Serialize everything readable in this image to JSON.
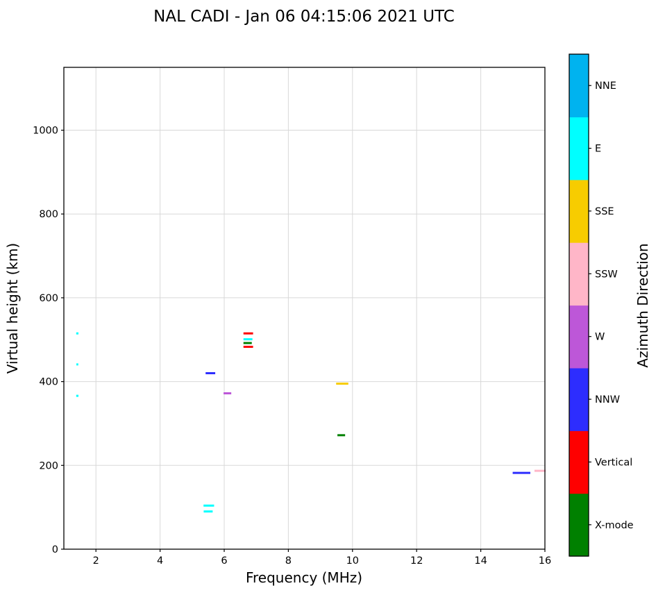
{
  "chart_data": {
    "type": "scatter",
    "title": "NAL CADI - Jan 06 04:15:06 2021 UTC",
    "xlabel": "Frequency (MHz)",
    "ylabel": "Virtual height (km)",
    "xlim": [
      1,
      16
    ],
    "ylim": [
      0,
      1150
    ],
    "x_ticks": [
      2,
      4,
      6,
      8,
      10,
      12,
      14,
      16
    ],
    "y_ticks": [
      0,
      200,
      400,
      600,
      800,
      1000
    ],
    "grid": true,
    "marker": "horizontal-dash",
    "colorbar": {
      "label": "Azimuth Direction",
      "categories_bottom_to_top": [
        {
          "label": "X-mode",
          "color": "#008000"
        },
        {
          "label": "Vertical",
          "color": "#fe0000"
        },
        {
          "label": "NNW",
          "color": "#2d2dfe"
        },
        {
          "label": "W",
          "color": "#bd57d8"
        },
        {
          "label": "SSW",
          "color": "#ffb6c8"
        },
        {
          "label": "SSE",
          "color": "#f7cc00"
        },
        {
          "label": "E",
          "color": "#00ffff"
        },
        {
          "label": "NNE",
          "color": "#00b3ef"
        }
      ]
    },
    "points": [
      {
        "freq_mhz": 1.42,
        "height_km": 515,
        "azimuth": "E",
        "width_mhz": 0.07
      },
      {
        "freq_mhz": 1.42,
        "height_km": 441,
        "azimuth": "E",
        "width_mhz": 0.06
      },
      {
        "freq_mhz": 1.42,
        "height_km": 366,
        "azimuth": "E",
        "width_mhz": 0.07
      },
      {
        "freq_mhz": 5.57,
        "height_km": 420,
        "azimuth": "NNW",
        "width_mhz": 0.3
      },
      {
        "freq_mhz": 5.52,
        "height_km": 104,
        "azimuth": "E",
        "width_mhz": 0.33
      },
      {
        "freq_mhz": 5.5,
        "height_km": 90,
        "azimuth": "E",
        "width_mhz": 0.28
      },
      {
        "freq_mhz": 6.1,
        "height_km": 372,
        "azimuth": "W",
        "width_mhz": 0.24
      },
      {
        "freq_mhz": 6.75,
        "height_km": 515,
        "azimuth": "Vertical",
        "width_mhz": 0.3
      },
      {
        "freq_mhz": 6.74,
        "height_km": 501,
        "azimuth": "E",
        "width_mhz": 0.28
      },
      {
        "freq_mhz": 6.73,
        "height_km": 492,
        "azimuth": "X-mode",
        "width_mhz": 0.26
      },
      {
        "freq_mhz": 6.75,
        "height_km": 483,
        "azimuth": "Vertical",
        "width_mhz": 0.3
      },
      {
        "freq_mhz": 9.68,
        "height_km": 395,
        "azimuth": "SSE",
        "width_mhz": 0.38
      },
      {
        "freq_mhz": 9.65,
        "height_km": 272,
        "azimuth": "X-mode",
        "width_mhz": 0.24
      },
      {
        "freq_mhz": 15.27,
        "height_km": 182,
        "azimuth": "NNW",
        "width_mhz": 0.55
      },
      {
        "freq_mhz": 15.85,
        "height_km": 187,
        "azimuth": "SSW",
        "width_mhz": 0.35
      }
    ]
  }
}
